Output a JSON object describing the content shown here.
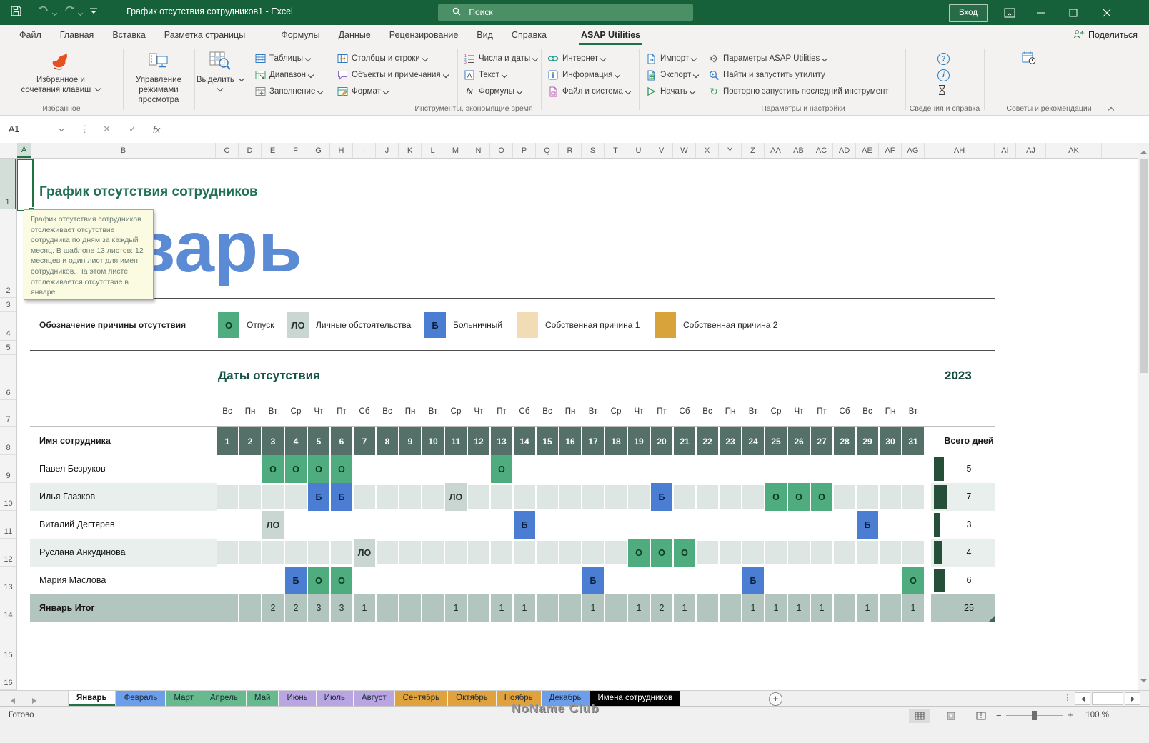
{
  "title_bar": {
    "title": "График отсутствия сотрудников1  -  Excel",
    "search_placeholder": "Поиск",
    "sign_in": "Вход"
  },
  "menu": {
    "tabs": [
      "Файл",
      "Главная",
      "Вставка",
      "Разметка страницы",
      "Формулы",
      "Данные",
      "Рецензирование",
      "Вид",
      "Справка",
      "ASAP Utilities"
    ],
    "active_tab": "ASAP Utilities",
    "share_label": "Поделиться"
  },
  "ribbon": {
    "big_buttons": [
      {
        "line1": "Избранное и",
        "line2": "сочетания клавиш",
        "dropdown": true,
        "icon": "flame-icon"
      },
      {
        "line1": "Управление",
        "line2": "режимами просмотра",
        "dropdown": false,
        "icon": "view-modes-icon"
      },
      {
        "line1": "Выделить",
        "line2": "",
        "dropdown": true,
        "icon": "select-grid-icon"
      }
    ],
    "stacks": [
      [
        {
          "label": "Таблицы",
          "icon": "tables-icon",
          "dropdown": true
        },
        {
          "label": "Диапазон",
          "icon": "range-icon",
          "dropdown": true
        },
        {
          "label": "Заполнение",
          "icon": "fill-icon",
          "dropdown": true
        }
      ],
      [
        {
          "label": "Столбцы и строки",
          "icon": "columns-rows-icon",
          "dropdown": true
        },
        {
          "label": "Объекты и примечания",
          "icon": "objects-comments-icon",
          "dropdown": true
        },
        {
          "label": "Формат",
          "icon": "format-icon",
          "dropdown": true
        }
      ],
      [
        {
          "label": "Числа и даты",
          "icon": "numbers-dates-icon",
          "dropdown": true
        },
        {
          "label": "Текст",
          "icon": "text-icon",
          "dropdown": true
        },
        {
          "label": "Формулы",
          "icon": "formulas-icon",
          "dropdown": true
        }
      ],
      [
        {
          "label": "Интернет",
          "icon": "internet-icon",
          "dropdown": true
        },
        {
          "label": "Информация",
          "icon": "information-icon",
          "dropdown": true
        },
        {
          "label": "Файл и система",
          "icon": "file-system-icon",
          "dropdown": true
        }
      ],
      [
        {
          "label": "Импорт",
          "icon": "import-icon",
          "dropdown": true
        },
        {
          "label": "Экспорт",
          "icon": "export-icon",
          "dropdown": true
        },
        {
          "label": "Начать",
          "icon": "start-icon",
          "dropdown": true
        }
      ],
      [
        {
          "label": "Параметры ASAP Utilities",
          "icon": "settings-gear-icon",
          "dropdown": true
        },
        {
          "label": "Найти и запустить утилиту",
          "icon": "find-run-icon",
          "dropdown": false
        },
        {
          "label": "Повторно запустить последний инструмент",
          "icon": "rerun-icon",
          "dropdown": false
        }
      ]
    ],
    "info_icons": [
      "help-icon",
      "info-icon",
      "hourglass-icon"
    ],
    "tips_icon": "calendar-clock-icon",
    "group_labels": [
      "Избранное",
      "Инструменты, экономящие время",
      "Параметры и настройки",
      "Сведения и справка",
      "Советы и рекомендации"
    ]
  },
  "formula_bar": {
    "name_box": "A1"
  },
  "grid": {
    "column_letters": [
      "A",
      "B",
      "C",
      "D",
      "E",
      "F",
      "G",
      "H",
      "I",
      "J",
      "K",
      "L",
      "M",
      "N",
      "O",
      "P",
      "Q",
      "R",
      "S",
      "T",
      "U",
      "V",
      "W",
      "X",
      "Y",
      "Z",
      "AA",
      "AB",
      "AC",
      "AD",
      "AE",
      "AF",
      "AG",
      "AH",
      "AI",
      "AJ",
      "AK"
    ],
    "row_numbers": [
      1,
      2,
      3,
      4,
      5,
      6,
      7,
      8,
      9,
      10,
      11,
      12,
      13,
      14,
      15,
      16
    ],
    "selected_cell": "A1",
    "title": "График отсутствия сотрудников",
    "month_watermark": "Январь",
    "tooltip_text": "График отсутствия сотрудников отслеживает отсутствие сотрудника по дням за каждый месяц. В шаблоне 13 листов: 12 месяцев и один лист для имен сотрудников. На этом листе отслеживается отсутствие в январе.",
    "legend": {
      "label": "Обозначение причины отсутствия",
      "items": [
        {
          "code": "О",
          "label": "Отпуск",
          "color": "#4fac7e",
          "text_color": "#0b3a20"
        },
        {
          "code": "ЛО",
          "label": "Личные обстоятельства",
          "color": "#c9d6d2",
          "text_color": "#26332d"
        },
        {
          "code": "Б",
          "label": "Больничный",
          "color": "#4b7ed3",
          "text_color": "#0c1e3d"
        },
        {
          "code": "",
          "label": "Собственная причина 1",
          "color": "#f2dcb5",
          "text_color": "#222222"
        },
        {
          "code": "",
          "label": "Собственная причина 2",
          "color": "#d9a33c",
          "text_color": "#222222"
        }
      ]
    },
    "section_title": "Даты отсутствия",
    "year": "2023",
    "weekday_names": [
      "Вс",
      "Пн",
      "Вт",
      "Ср",
      "Чт",
      "Пт",
      "Сб"
    ],
    "first_day_weekday_index": 0,
    "days_in_month": 31,
    "table": {
      "name_header": "Имя сотрудника",
      "total_header": "Всего дней",
      "employees": [
        {
          "name": "Павел Безруков",
          "marks": {
            "3": "О",
            "4": "О",
            "5": "О",
            "6": "О",
            "13": "О"
          },
          "total": 5
        },
        {
          "name": "Илья Глазков",
          "marks": {
            "5": "Б",
            "6": "Б",
            "11": "ЛО",
            "20": "Б",
            "25": "О",
            "26": "О",
            "27": "О"
          },
          "total": 7
        },
        {
          "name": "Виталий Дегтярев",
          "marks": {
            "3": "ЛО",
            "14": "Б",
            "29": "Б"
          },
          "total": 3
        },
        {
          "name": "Руслана Анкудинова",
          "marks": {
            "7": "ЛО",
            "19": "О",
            "20": "О",
            "21": "О"
          },
          "total": 4
        },
        {
          "name": "Мария Маслова",
          "marks": {
            "4": "Б",
            "5": "О",
            "6": "О",
            "17": "Б",
            "24": "Б",
            "31": "О"
          },
          "total": 6
        }
      ],
      "summary": {
        "label": "Январь Итог",
        "day_totals": {
          "3": 2,
          "4": 2,
          "5": 3,
          "6": 3,
          "7": 1,
          "11": 1,
          "13": 1,
          "14": 1,
          "17": 1,
          "19": 1,
          "20": 2,
          "21": 1,
          "24": 1,
          "25": 1,
          "26": 1,
          "27": 1,
          "29": 1,
          "31": 1
        },
        "total": 25
      }
    },
    "colors": {
      "day_header": "#547069",
      "summary_row": "#b2c5bf",
      "stripe_row": "#e9efec",
      "stripe_cell": "#dde6e3",
      "total_bar": "#254f38",
      "accent_green": "#217346"
    }
  },
  "sheet_tabs": {
    "active": "Январь",
    "tabs": [
      {
        "label": "Январь",
        "color": "#ffffff"
      },
      {
        "label": "Февраль",
        "color": "#6d9eea"
      },
      {
        "label": "Март",
        "color": "#66ba8e"
      },
      {
        "label": "Апрель",
        "color": "#66ba8e"
      },
      {
        "label": "Май",
        "color": "#66ba8e"
      },
      {
        "label": "Июнь",
        "color": "#b8a5e2"
      },
      {
        "label": "Июль",
        "color": "#b8a5e2"
      },
      {
        "label": "Август",
        "color": "#b8a5e2"
      },
      {
        "label": "Сентябрь",
        "color": "#dfa23d"
      },
      {
        "label": "Октябрь",
        "color": "#dfa23d"
      },
      {
        "label": "Ноябрь",
        "color": "#dfa23d"
      },
      {
        "label": "Декабрь",
        "color": "#6d9eea"
      },
      {
        "label": "Имена сотрудников",
        "color": "#000000",
        "text_color": "#ffffff"
      }
    ],
    "add_button": "+"
  },
  "status_bar": {
    "ready": "Готово",
    "zoom": "100 %"
  },
  "watermark": "NoName Club"
}
